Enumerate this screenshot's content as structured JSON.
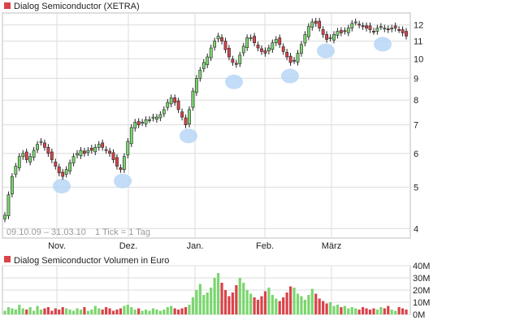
{
  "colors": {
    "up": "#7bd66f",
    "down": "#d9434a",
    "grid": "#dcdcdc",
    "frame": "#bdbdbd",
    "marker": "#b9d6f6"
  },
  "chart_data": [
    {
      "type": "candlestick",
      "title": "Dialog Semiconductor (XETRA)",
      "legend_marker_color": "#d9434a",
      "date_range_label": "09.10.09 – 31.03.10",
      "tick_label": "1 Tick = 1 Tag",
      "x_labels": [
        "Nov.",
        "Dez.",
        "Jan.",
        "Feb.",
        "März"
      ],
      "y_scale": "log",
      "ylim": [
        3.8,
        12.8
      ],
      "y_ticks": [
        4,
        5,
        6,
        7,
        8,
        9,
        10,
        11,
        12
      ],
      "close": [
        4.3,
        4.8,
        5.3,
        5.6,
        5.9,
        6.0,
        5.8,
        5.9,
        6.1,
        6.3,
        6.4,
        6.2,
        6.0,
        5.8,
        5.6,
        5.4,
        5.3,
        5.5,
        5.7,
        5.9,
        6.0,
        6.1,
        6.0,
        6.1,
        6.1,
        6.2,
        6.3,
        6.2,
        6.1,
        6.0,
        5.8,
        5.6,
        5.5,
        5.9,
        6.4,
        6.9,
        7.1,
        7.0,
        7.1,
        7.2,
        7.2,
        7.3,
        7.3,
        7.4,
        7.6,
        7.9,
        8.1,
        7.9,
        7.6,
        7.3,
        7.0,
        7.6,
        8.4,
        9.0,
        9.4,
        9.8,
        10.1,
        10.6,
        11.0,
        11.3,
        11.0,
        10.5,
        10.1,
        9.8,
        9.7,
        10.2,
        10.7,
        11.2,
        11.2,
        10.9,
        10.6,
        10.4,
        10.3,
        10.6,
        10.9,
        11.1,
        10.8,
        10.4,
        10.1,
        9.8,
        9.9,
        10.3,
        10.8,
        11.4,
        11.9,
        12.2,
        12.1,
        11.8,
        11.4,
        11.1,
        11.2,
        11.4,
        11.6,
        11.5,
        11.6,
        11.8,
        12.1,
        12.2,
        12.0,
        11.9,
        11.8,
        11.7,
        11.6,
        11.8,
        11.9,
        11.8,
        11.7,
        11.8,
        11.8,
        11.7,
        11.5,
        11.3
      ],
      "markers": [
        {
          "date": "Nov. (Anfang)",
          "price": 5.3
        },
        {
          "date": "Dez. (Anfang)",
          "price": 5.45
        },
        {
          "date": "Dez. (Ende)",
          "price": 6.95
        },
        {
          "date": "Jan. (Mitte)",
          "price": 9.3
        },
        {
          "date": "Feb. (Mitte)",
          "price": 9.6
        },
        {
          "date": "März (Anfang)",
          "price": 11.0
        },
        {
          "date": "März (Mitte)",
          "price": 11.4
        }
      ]
    },
    {
      "type": "bar",
      "title": "Dialog Semiconductor Volumen in Euro",
      "legend_marker_color": "#d9434a",
      "y_unit": "M",
      "ylim": [
        0,
        40
      ],
      "y_ticks": [
        0,
        10,
        20,
        30,
        40
      ],
      "y_tick_labels": [
        "0M",
        "10M",
        "20M",
        "30M",
        "40M"
      ],
      "values": [
        3,
        6,
        5,
        4,
        8,
        5,
        4,
        6,
        3,
        7,
        4,
        5,
        6,
        3,
        5,
        4,
        6,
        5,
        4,
        3,
        5,
        4,
        6,
        3,
        4,
        7,
        5,
        4,
        6,
        5,
        3,
        4,
        5,
        7,
        8,
        6,
        4,
        5,
        3,
        4,
        3,
        5,
        4,
        3,
        4,
        6,
        7,
        5,
        4,
        5,
        6,
        8,
        14,
        20,
        25,
        16,
        18,
        22,
        30,
        34,
        26,
        20,
        15,
        18,
        24,
        30,
        26,
        20,
        17,
        14,
        12,
        15,
        19,
        22,
        16,
        13,
        11,
        14,
        18,
        23,
        22,
        17,
        15,
        12,
        16,
        21,
        17,
        13,
        11,
        9,
        10,
        7,
        8,
        6,
        7,
        5,
        6,
        5,
        4,
        6,
        5,
        4,
        5,
        4,
        6,
        5,
        7,
        4,
        3,
        6,
        5,
        4
      ]
    }
  ]
}
